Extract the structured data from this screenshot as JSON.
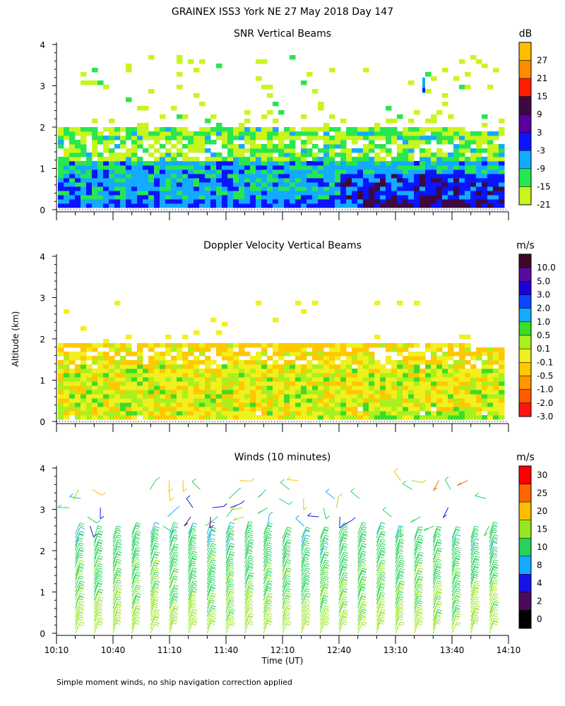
{
  "figure_title": "GRAINEX ISS3 York NE  27 May 2018 Day 147",
  "footnote": "Simple moment winds, no ship navigation correction applied",
  "y_axis_label": "Altitude (km)",
  "x_axis_label": "Time (UT)",
  "x_ticks": [
    "10:10",
    "10:40",
    "11:10",
    "11:40",
    "12:10",
    "12:40",
    "13:10",
    "13:40",
    "14:10"
  ],
  "y_ticks": [
    "0",
    "1",
    "2",
    "3",
    "4"
  ],
  "chart_data": [
    {
      "type": "heatmap",
      "title": "SNR Vertical Beams",
      "units": "dB",
      "xlabel": "Time (UT)",
      "ylabel": "Altitude (km)",
      "xlim_hours_utc": [
        10.1667,
        14.1667
      ],
      "ylim_km": [
        0,
        4
      ],
      "colorbar_levels": [
        "27",
        "21",
        "15",
        "9",
        "3",
        "-3",
        "-9",
        "-15",
        "-21"
      ],
      "colorbar_colors": [
        "#ffbe00",
        "#ff8c00",
        "#ff1e00",
        "#3c0a40",
        "#5a00a0",
        "#0a14ff",
        "#14aaff",
        "#28e650",
        "#c8f51e"
      ],
      "description_layers": [
        {
          "alt_km": [
            0.15,
            0.35
          ],
          "class_dB": "9 to 15 late, -3 early"
        },
        {
          "alt_km": [
            0.35,
            1.2
          ],
          "class_dB": "-9 to -3"
        },
        {
          "alt_km": [
            1.2,
            2.1
          ],
          "class_dB": "-15 to -9"
        },
        {
          "alt_km": [
            2.1,
            3.8
          ],
          "class_dB": "-21 (sparse)"
        }
      ]
    },
    {
      "type": "heatmap",
      "title": "Doppler Velocity Vertical Beams",
      "units": "m/s",
      "xlabel": "Time (UT)",
      "ylabel": "Altitude (km)",
      "xlim_hours_utc": [
        10.1667,
        14.1667
      ],
      "ylim_km": [
        0,
        4
      ],
      "colorbar_levels": [
        "10.0",
        "5.0",
        "3.0",
        "2.0",
        "1.0",
        "0.5",
        "0.1",
        "-0.1",
        "-0.5",
        "-1.0",
        "-2.0",
        "-3.0"
      ],
      "colorbar_colors": [
        "#3c0a28",
        "#5a0aa0",
        "#1e00d2",
        "#0a46ff",
        "#14aaff",
        "#3cdc28",
        "#aaf01e",
        "#f0f01e",
        "#ffc800",
        "#ff9600",
        "#ff5a00",
        "#ff1414"
      ],
      "description": "Mostly -0.5 to 0.1 m/s between 0.1 and 2.0 km"
    },
    {
      "type": "wind_barbs",
      "title": "Winds (10 minutes)",
      "units": "m/s",
      "xlabel": "Time (UT)",
      "ylabel": "Altitude (km)",
      "xlim_hours_utc": [
        10.1667,
        14.1667
      ],
      "ylim_km": [
        0,
        4
      ],
      "colorbar_levels": [
        "30",
        "25",
        "20",
        "15",
        "10",
        "8",
        "4",
        "2",
        "0"
      ],
      "colorbar_colors": [
        "#ff0000",
        "#ff6400",
        "#ffbe00",
        "#96e61e",
        "#28d25a",
        "#14aaff",
        "#1414e6",
        "#4b0a5a",
        "#000000"
      ],
      "profile_times_utc": [
        "10:20",
        "10:30",
        "10:40",
        "10:50",
        "11:00",
        "11:10",
        "11:20",
        "11:30",
        "11:40",
        "11:50",
        "12:00",
        "12:10",
        "12:20",
        "12:30",
        "12:40",
        "12:50",
        "13:00",
        "13:10",
        "13:20",
        "13:30",
        "13:40",
        "13:50",
        "14:00"
      ],
      "typical_speed_by_altitude": [
        {
          "alt_km": 0.2,
          "speed_ms": 17
        },
        {
          "alt_km": 1.0,
          "speed_ms": 14
        },
        {
          "alt_km": 2.0,
          "speed_ms": 12
        },
        {
          "alt_km": 3.0,
          "speed_ms": 10
        },
        {
          "alt_km": 3.8,
          "speed_ms": 22
        }
      ]
    }
  ]
}
